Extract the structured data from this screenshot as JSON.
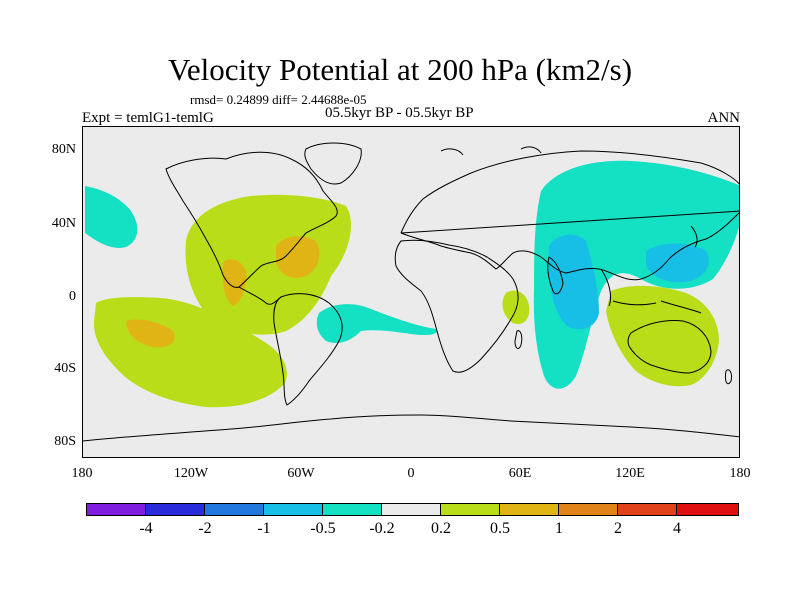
{
  "header": {
    "title": "Velocity Potential at 200 hPa (km2/s)",
    "stats": "rmsd= 0.24899 diff= 2.44688e-05",
    "expt": "Expt = temlG1-temlG",
    "period": "05.5kyr BP - 05.5kyr BP",
    "season": "ANN"
  },
  "axes": {
    "lat_labels": [
      "80N",
      "40N",
      "0",
      "40S",
      "80S"
    ],
    "lon_labels": [
      "180",
      "120W",
      "60W",
      "0",
      "60E",
      "120E",
      "180"
    ]
  },
  "legend": {
    "colors": [
      "#7e1fe0",
      "#2a2bd9",
      "#1f79de",
      "#17bfe6",
      "#14e0c4",
      "#ebebeb",
      "#b9dd19",
      "#e0b414",
      "#e08419",
      "#e0421a",
      "#e00f0f"
    ],
    "labels": [
      "-4",
      "-2",
      "-1",
      "-0.5",
      "-0.2",
      "0.2",
      "0.5",
      "1",
      "2",
      "4"
    ]
  },
  "map": {
    "background_color": "#ebebeb",
    "coastline_color": "#000000"
  }
}
